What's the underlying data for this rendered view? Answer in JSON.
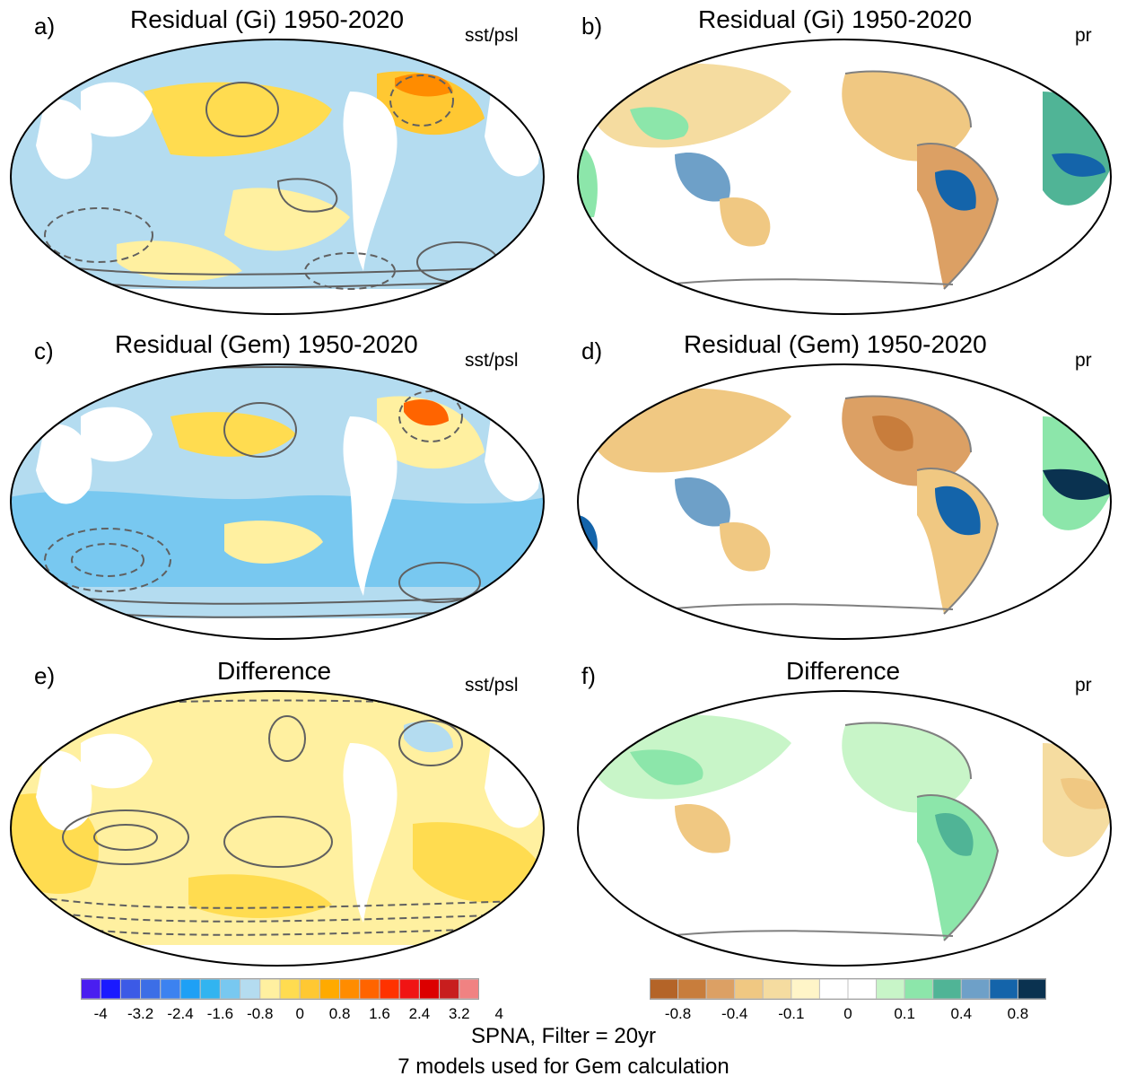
{
  "panels": [
    {
      "letter": "a)",
      "title": "Residual (Gi) 1950-2020",
      "var": "sst/psl"
    },
    {
      "letter": "b)",
      "title": "Residual (Gi) 1950-2020",
      "var": "pr"
    },
    {
      "letter": "c)",
      "title": "Residual (Gem) 1950-2020",
      "var": "sst/psl"
    },
    {
      "letter": "d)",
      "title": "Residual (Gem) 1950-2020",
      "var": "pr"
    },
    {
      "letter": "e)",
      "title": "Difference",
      "var": "sst/psl"
    },
    {
      "letter": "f)",
      "title": "Difference",
      "var": "pr"
    }
  ],
  "sst_colorbar": {
    "colors": [
      "#4a1ef0",
      "#1a1aff",
      "#3c5ae6",
      "#3c6ee6",
      "#3c82f0",
      "#1ea0f5",
      "#32b4f0",
      "#78c8f0",
      "#b4dcf0",
      "#fff0a0",
      "#ffdc50",
      "#ffc832",
      "#ffaa00",
      "#ff8c00",
      "#ff6400",
      "#ff3200",
      "#f01414",
      "#dc0000",
      "#c81e1e",
      "#f08282"
    ],
    "labels": [
      "-4",
      "-3.2",
      "-2.4",
      "-1.6",
      "-0.8",
      "0",
      "0.8",
      "1.6",
      "2.4",
      "3.2",
      "4"
    ]
  },
  "pr_colorbar": {
    "colors": [
      "#b46428",
      "#c87d3c",
      "#dca064",
      "#f0c882",
      "#f5dca0",
      "#fff5c8",
      "#ffffff",
      "#ffffff",
      "#c8f5c8",
      "#8ce6aa",
      "#50b496",
      "#6ea0c8",
      "#1464aa",
      "#0a3250"
    ],
    "labels": [
      "-0.8",
      "-0.4",
      "-0.1",
      "0",
      "0.1",
      "0.4",
      "0.8"
    ]
  },
  "colors": {
    "ocean_blue": "#b4dcf0",
    "ocean_yellow": "#fff0a0",
    "land_brown": "#dca064",
    "land_green": "#8ce6aa",
    "contour": "#606060"
  },
  "footer": {
    "line1": "SPNA, Filter = 20yr",
    "line2": "7 models used for Gem calculation"
  }
}
